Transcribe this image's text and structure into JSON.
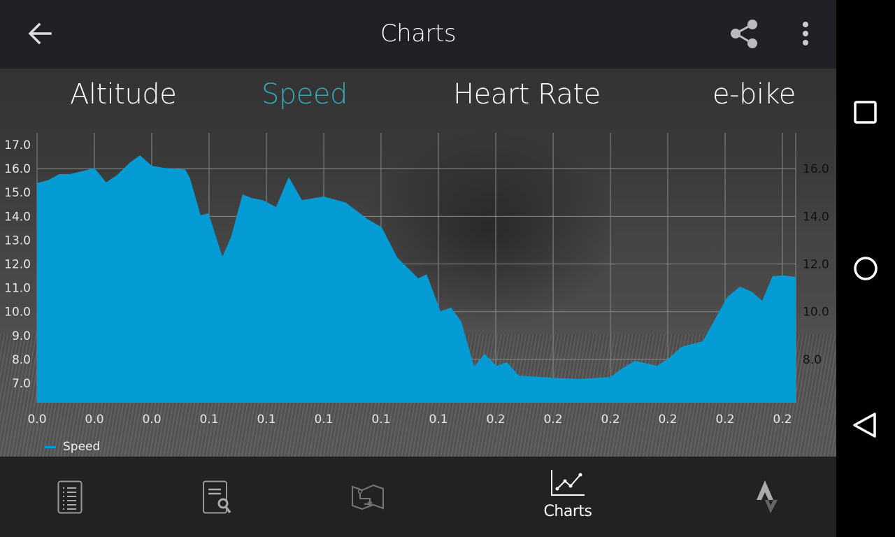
{
  "topbar": {
    "title": "Charts",
    "back_icon": "arrow-left-icon",
    "share_icon": "share-icon",
    "menu_icon": "more-vertical-icon"
  },
  "tabs": [
    {
      "label": "Altitude",
      "active": false
    },
    {
      "label": "Speed",
      "active": true
    },
    {
      "label": "Heart Rate",
      "active": false
    },
    {
      "label": "e-bike",
      "active": false
    }
  ],
  "colors": {
    "accent": "#33a9b5",
    "series": "#049bd4",
    "bar": "#202124"
  },
  "chart_data": {
    "type": "area",
    "title": "",
    "xlabel": "",
    "ylabel": "",
    "grid": true,
    "legend": "bottom-left",
    "ylim": [
      6.18,
      17.5
    ],
    "xlim": [
      0,
      0.2514
    ],
    "x_tick_values": [
      0,
      0.019,
      0.038,
      0.057,
      0.076,
      0.095,
      0.114,
      0.133,
      0.152,
      0.171,
      0.19,
      0.209,
      0.228,
      0.247
    ],
    "x_tick_labels": [
      "0.0",
      "0.0",
      "0.0",
      "0.1",
      "0.1",
      "0.1",
      "0.1",
      "0.1",
      "0.2",
      "0.2",
      "0.2",
      "0.2",
      "0.2",
      "0.2"
    ],
    "y_left_ticks": [
      "7.0",
      "8.0",
      "9.0",
      "10.0",
      "11.0",
      "12.0",
      "13.0",
      "14.0",
      "15.0",
      "16.0",
      "17.0"
    ],
    "y_right_ticks": [
      "8.0",
      "10.0",
      "12.0",
      "14.0",
      "16.0"
    ],
    "series": [
      {
        "name": "Speed",
        "x": [
          0,
          0.0039,
          0.0074,
          0.0109,
          0.0155,
          0.019,
          0.0229,
          0.0266,
          0.0306,
          0.0341,
          0.038,
          0.0422,
          0.0491,
          0.0507,
          0.0542,
          0.0568,
          0.0614,
          0.0642,
          0.0681,
          0.0711,
          0.0748,
          0.0792,
          0.0834,
          0.0878,
          0.095,
          0.1024,
          0.1094,
          0.1142,
          0.1193,
          0.1263,
          0.1291,
          0.1337,
          0.1372,
          0.1406,
          0.1448,
          0.1483,
          0.1522,
          0.1557,
          0.1596,
          0.1638,
          0.1731,
          0.18,
          0.19,
          0.1939,
          0.1981,
          0.2055,
          0.2095,
          0.2136,
          0.2206,
          0.2287,
          0.2329,
          0.2368,
          0.2403,
          0.2437,
          0.2472,
          0.2514
        ],
        "y": [
          15.39,
          15.53,
          15.77,
          15.77,
          15.91,
          16.03,
          15.42,
          15.74,
          16.24,
          16.56,
          16.12,
          16.03,
          15.97,
          15.59,
          14.04,
          14.13,
          12.31,
          13.1,
          14.92,
          14.77,
          14.68,
          14.39,
          15.65,
          14.68,
          14.83,
          14.57,
          13.89,
          13.54,
          12.28,
          11.4,
          11.57,
          10.02,
          10.17,
          9.58,
          7.7,
          8.23,
          7.73,
          7.88,
          7.32,
          7.29,
          7.21,
          7.18,
          7.26,
          7.62,
          7.94,
          7.73,
          8.06,
          8.53,
          8.76,
          10.61,
          11.05,
          10.84,
          10.46,
          11.49,
          11.52,
          11.46
        ]
      }
    ]
  },
  "bottom_nav": [
    {
      "icon": "list-icon",
      "label": ""
    },
    {
      "icon": "document-search-icon",
      "label": ""
    },
    {
      "icon": "route-map-icon",
      "label": ""
    },
    {
      "icon": "line-chart-icon",
      "label": "Charts",
      "active": true
    },
    {
      "icon": "strava-icon",
      "label": ""
    }
  ],
  "system_nav": [
    "recents-square-icon",
    "home-circle-icon",
    "back-triangle-icon"
  ]
}
